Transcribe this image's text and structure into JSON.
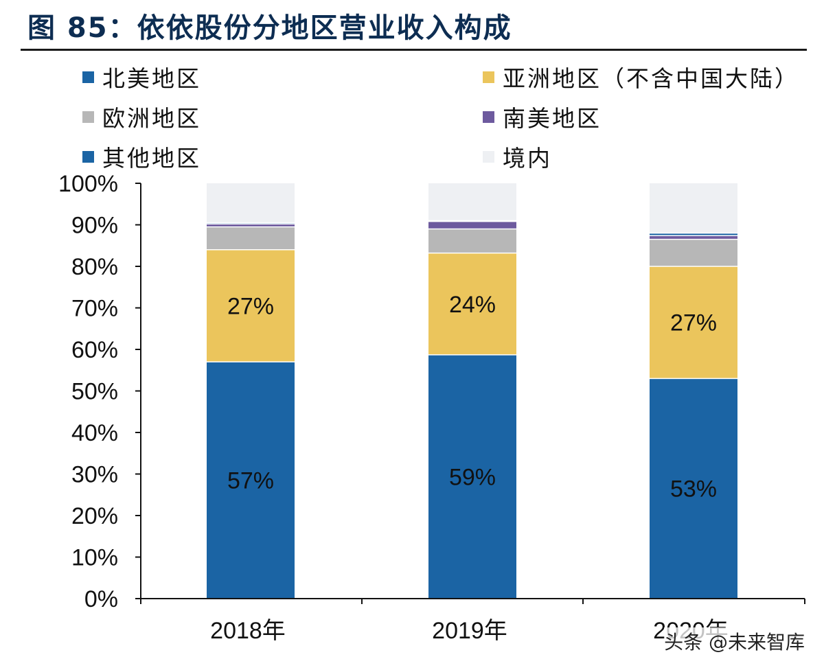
{
  "figure_title": "图 85：依依股份分地区营业收入构成",
  "watermark": "头条 @未来智库",
  "chart_data": {
    "type": "bar",
    "stacked": true,
    "categories": [
      "2018年",
      "2019年",
      "2020年"
    ],
    "series": [
      {
        "name": "北美地区",
        "color": "#1b64a4",
        "values": [
          57,
          58.7,
          53
        ]
      },
      {
        "name": "亚洲地区（不含中国大陆）",
        "color": "#ebc55c",
        "values": [
          27,
          24.5,
          27
        ]
      },
      {
        "name": "欧洲地区",
        "color": "#b7b7b7",
        "values": [
          5.5,
          5.8,
          6.5
        ]
      },
      {
        "name": "南美地区",
        "color": "#6d5a9e",
        "values": [
          0.7,
          1.8,
          0.9
        ]
      },
      {
        "name": "其他地区",
        "color": "#1b64a4",
        "values": [
          0.3,
          0.2,
          0.6
        ]
      },
      {
        "name": "境内",
        "color": "#eef0f3",
        "values": [
          9.5,
          9.0,
          12.0
        ]
      }
    ],
    "data_labels": [
      {
        "series": 0,
        "category": 0,
        "text": "57%"
      },
      {
        "series": 0,
        "category": 1,
        "text": "59%"
      },
      {
        "series": 0,
        "category": 2,
        "text": "53%"
      },
      {
        "series": 1,
        "category": 0,
        "text": "27%"
      },
      {
        "series": 1,
        "category": 1,
        "text": "24%"
      },
      {
        "series": 1,
        "category": 2,
        "text": "27%"
      }
    ],
    "y_ticks": [
      "0%",
      "10%",
      "20%",
      "30%",
      "40%",
      "50%",
      "60%",
      "70%",
      "80%",
      "90%",
      "100%"
    ],
    "ylim": [
      0,
      100
    ],
    "grid": false,
    "legend_position": "top",
    "title": "",
    "xlabel": "",
    "ylabel": ""
  }
}
